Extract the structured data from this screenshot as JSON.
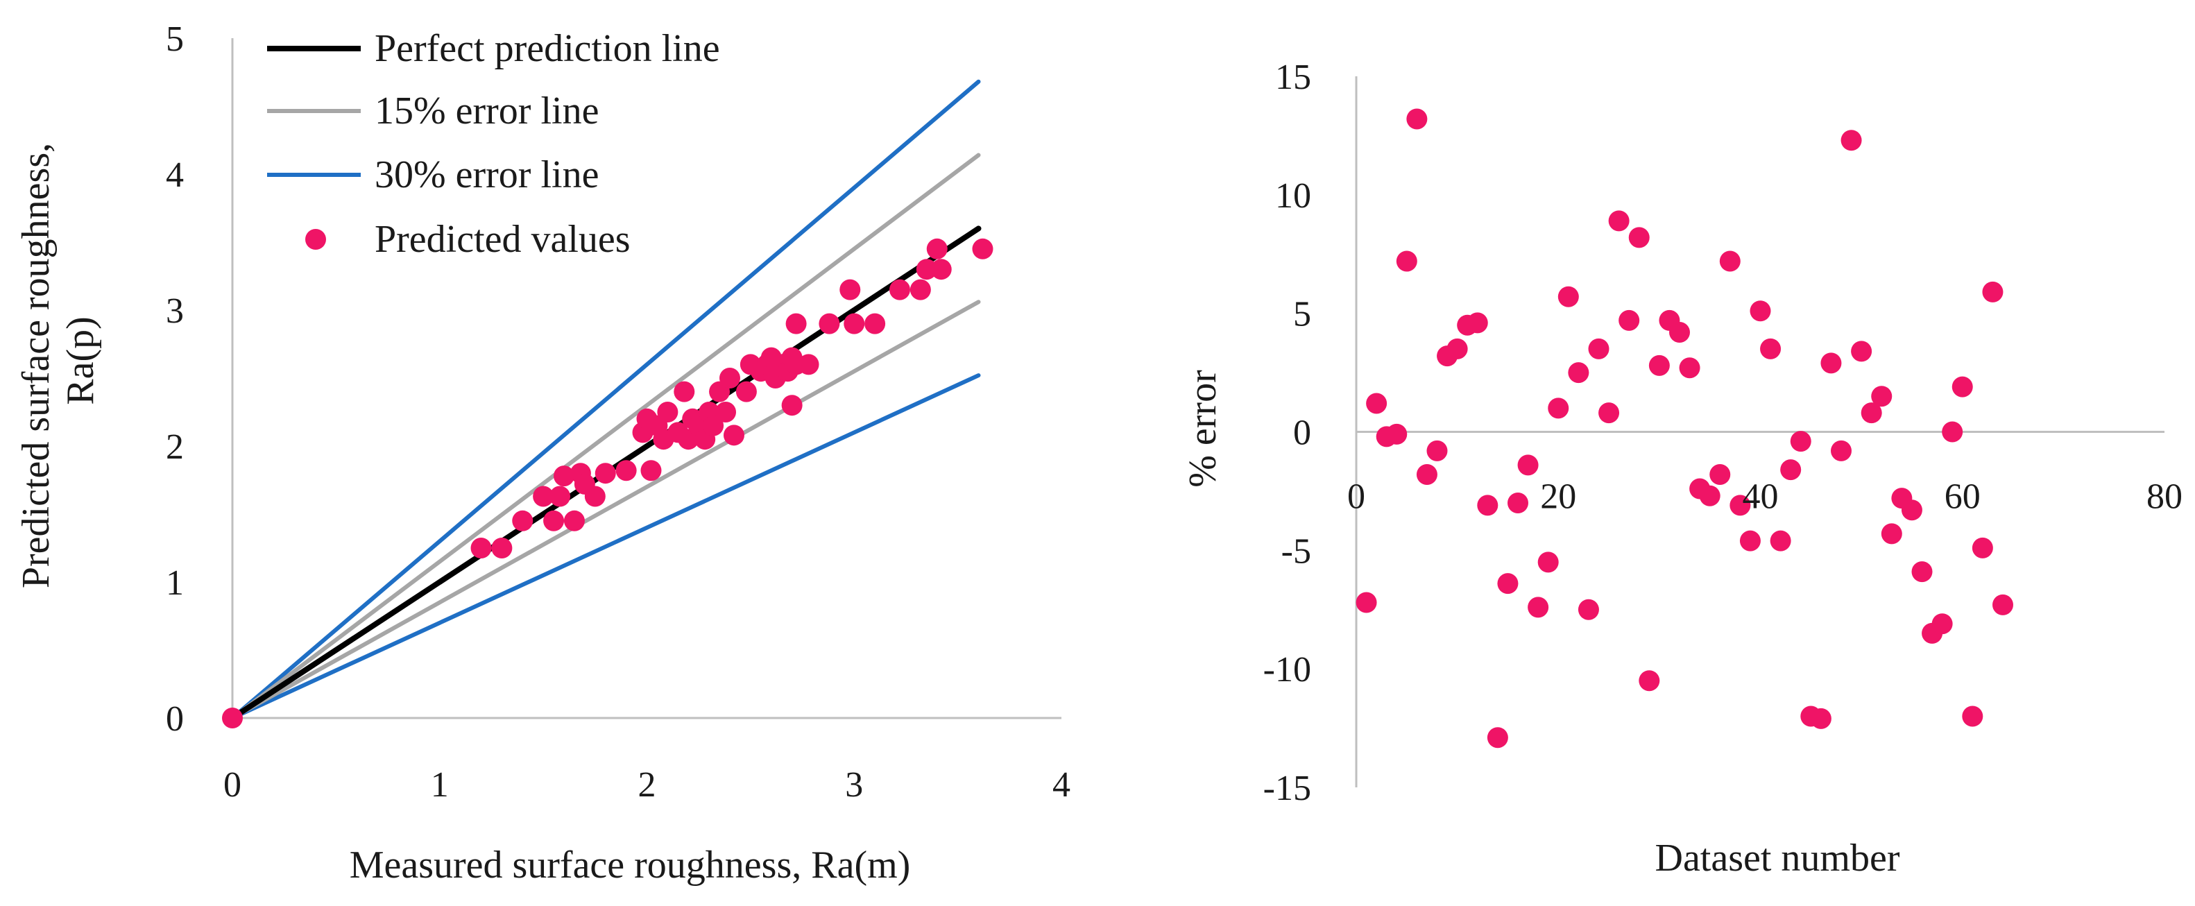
{
  "chart_data": [
    {
      "type": "scatter",
      "title": "",
      "xlabel": "Measured surface roughness, Ra(m)",
      "ylabel_lines": [
        "Predicted surface roughness,",
        "Ra(p)"
      ],
      "xlim": [
        0,
        4
      ],
      "ylim": [
        0,
        5
      ],
      "x_ticks": [
        0,
        1,
        2,
        3,
        4
      ],
      "y_ticks": [
        0,
        1,
        2,
        3,
        4,
        5
      ],
      "legend_position": "top-left",
      "lines": [
        {
          "name": "Perfect prediction line",
          "color": "#000000",
          "x": [
            0,
            3.6
          ],
          "y": [
            0,
            3.6
          ]
        },
        {
          "name": "15% error line",
          "color": "#a6a6a6",
          "x": [
            0,
            3.6
          ],
          "y": [
            0,
            4.14
          ]
        },
        {
          "name": "15% error line (lower)",
          "color": "#a6a6a6",
          "x": [
            0,
            3.6
          ],
          "y": [
            0,
            3.06
          ]
        },
        {
          "name": "30% error line",
          "color": "#1f6fc5",
          "x": [
            0,
            3.6
          ],
          "y": [
            0,
            4.68
          ]
        },
        {
          "name": "30% error line (lower)",
          "color": "#1f6fc5",
          "x": [
            0,
            3.6
          ],
          "y": [
            0,
            2.52
          ]
        }
      ],
      "legend": [
        {
          "label": "Perfect prediction line",
          "kind": "line",
          "color": "#000000"
        },
        {
          "label": "15% error line",
          "kind": "line",
          "color": "#a6a6a6"
        },
        {
          "label": "30% error line",
          "kind": "line",
          "color": "#1f6fc5"
        },
        {
          "label": "Predicted values",
          "kind": "marker",
          "color": "#ef1466"
        }
      ],
      "series": [
        {
          "name": "Predicted values",
          "color": "#ef1466",
          "points": [
            [
              0,
              0
            ],
            [
              1.2,
              1.25
            ],
            [
              1.3,
              1.25
            ],
            [
              1.4,
              1.45
            ],
            [
              1.5,
              1.63
            ],
            [
              1.55,
              1.45
            ],
            [
              1.58,
              1.63
            ],
            [
              1.6,
              1.78
            ],
            [
              1.65,
              1.45
            ],
            [
              1.68,
              1.8
            ],
            [
              1.7,
              1.72
            ],
            [
              1.75,
              1.63
            ],
            [
              1.8,
              1.8
            ],
            [
              1.9,
              1.82
            ],
            [
              1.98,
              2.1
            ],
            [
              2.0,
              2.2
            ],
            [
              2.02,
              1.82
            ],
            [
              2.05,
              2.15
            ],
            [
              2.08,
              2.05
            ],
            [
              2.1,
              2.25
            ],
            [
              2.15,
              2.1
            ],
            [
              2.18,
              2.4
            ],
            [
              2.2,
              2.05
            ],
            [
              2.22,
              2.2
            ],
            [
              2.25,
              2.15
            ],
            [
              2.28,
              2.05
            ],
            [
              2.3,
              2.25
            ],
            [
              2.32,
              2.15
            ],
            [
              2.35,
              2.4
            ],
            [
              2.38,
              2.25
            ],
            [
              2.4,
              2.5
            ],
            [
              2.42,
              2.08
            ],
            [
              2.48,
              2.4
            ],
            [
              2.5,
              2.6
            ],
            [
              2.55,
              2.55
            ],
            [
              2.58,
              2.6
            ],
            [
              2.6,
              2.65
            ],
            [
              2.62,
              2.5
            ],
            [
              2.65,
              2.6
            ],
            [
              2.68,
              2.55
            ],
            [
              2.7,
              2.65
            ],
            [
              2.72,
              2.6
            ],
            [
              2.7,
              2.3
            ],
            [
              2.72,
              2.9
            ],
            [
              2.78,
              2.6
            ],
            [
              2.88,
              2.9
            ],
            [
              2.98,
              3.15
            ],
            [
              3.0,
              2.9
            ],
            [
              3.1,
              2.9
            ],
            [
              3.22,
              3.15
            ],
            [
              3.32,
              3.15
            ],
            [
              3.35,
              3.3
            ],
            [
              3.4,
              3.45
            ],
            [
              3.42,
              3.3
            ],
            [
              3.62,
              3.45
            ]
          ]
        }
      ]
    },
    {
      "type": "scatter",
      "title": "",
      "xlabel": "Dataset number",
      "ylabel": "% error",
      "xlim": [
        0,
        80
      ],
      "ylim": [
        -15,
        15
      ],
      "x_ticks": [
        0,
        20,
        40,
        60,
        80
      ],
      "y_ticks": [
        -15,
        -10,
        -5,
        0,
        5,
        10,
        15
      ],
      "series": [
        {
          "name": "% error",
          "color": "#ef1466",
          "points": [
            [
              1,
              -7.2
            ],
            [
              2,
              1.2
            ],
            [
              3,
              -0.2
            ],
            [
              4,
              -0.1
            ],
            [
              5,
              7.2
            ],
            [
              6,
              13.2
            ],
            [
              7,
              -1.8
            ],
            [
              8,
              -0.8
            ],
            [
              9,
              3.2
            ],
            [
              10,
              3.5
            ],
            [
              11,
              4.5
            ],
            [
              12,
              4.6
            ],
            [
              13,
              -3.1
            ],
            [
              14,
              -12.9
            ],
            [
              15,
              -6.4
            ],
            [
              16,
              -3.0
            ],
            [
              17,
              -1.4
            ],
            [
              18,
              -7.4
            ],
            [
              19,
              -5.5
            ],
            [
              20,
              1.0
            ],
            [
              21,
              5.7
            ],
            [
              22,
              2.5
            ],
            [
              23,
              -7.5
            ],
            [
              24,
              3.5
            ],
            [
              25,
              0.8
            ],
            [
              26,
              8.9
            ],
            [
              27,
              4.7
            ],
            [
              28,
              8.2
            ],
            [
              29,
              -10.5
            ],
            [
              30,
              2.8
            ],
            [
              31,
              4.7
            ],
            [
              32,
              4.2
            ],
            [
              33,
              2.7
            ],
            [
              34,
              -2.4
            ],
            [
              35,
              -2.7
            ],
            [
              36,
              -1.8
            ],
            [
              37,
              7.2
            ],
            [
              38,
              -3.1
            ],
            [
              39,
              -4.6
            ],
            [
              40,
              5.1
            ],
            [
              41,
              3.5
            ],
            [
              42,
              -4.6
            ],
            [
              43,
              -1.6
            ],
            [
              44,
              -0.4
            ],
            [
              45,
              -12.0
            ],
            [
              46,
              -12.1
            ],
            [
              47,
              2.9
            ],
            [
              48,
              -0.8
            ],
            [
              49,
              12.3
            ],
            [
              50,
              3.4
            ],
            [
              51,
              0.8
            ],
            [
              52,
              1.5
            ],
            [
              53,
              -4.3
            ],
            [
              54,
              -2.8
            ],
            [
              55,
              -3.3
            ],
            [
              56,
              -5.9
            ],
            [
              57,
              -8.5
            ],
            [
              58,
              -8.1
            ],
            [
              59,
              0.0
            ],
            [
              60,
              1.9
            ],
            [
              61,
              -12.0
            ],
            [
              62,
              -4.9
            ],
            [
              63,
              5.9
            ],
            [
              64,
              -7.3
            ]
          ]
        }
      ]
    }
  ]
}
